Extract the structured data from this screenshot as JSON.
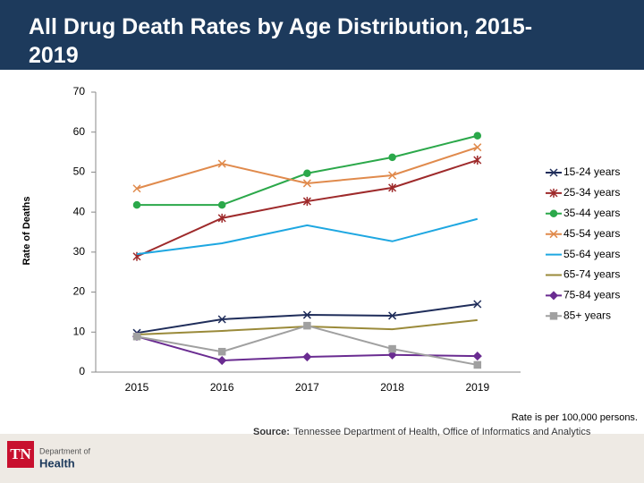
{
  "chart_data": {
    "type": "line",
    "title": "All Drug Death Rates by Age Distribution, 2015-2019",
    "y_label": "Rate of Deaths",
    "note": "Rate is per 100,000 persons.",
    "categories": [
      "2015",
      "2016",
      "2017",
      "2018",
      "2019"
    ],
    "ylim": [
      0,
      70
    ],
    "yticks": [
      0,
      10,
      20,
      30,
      40,
      50,
      60,
      70
    ],
    "legend": "right",
    "series": [
      {
        "name": "15-24 years",
        "color": "#1f2d5a",
        "marker": "x",
        "values": [
          9.8,
          13.2,
          14.3,
          14.1,
          17.0
        ]
      },
      {
        "name": "25-34 years",
        "color": "#9e2a2b",
        "marker": "star",
        "values": [
          28.9,
          38.5,
          42.7,
          46.1,
          53.0
        ]
      },
      {
        "name": "35-44 years",
        "color": "#2ba84a",
        "marker": "circle",
        "values": [
          41.8,
          41.8,
          49.7,
          53.7,
          59.1
        ]
      },
      {
        "name": "45-54 years",
        "color": "#e08a4c",
        "marker": "x",
        "values": [
          45.9,
          52.1,
          47.2,
          49.2,
          56.2
        ]
      },
      {
        "name": "55-64 years",
        "color": "#1ea7e1",
        "marker": "none",
        "values": [
          29.5,
          32.2,
          36.7,
          32.7,
          38.3
        ]
      },
      {
        "name": "65-74 years",
        "color": "#9a8a3a",
        "marker": "none",
        "values": [
          9.4,
          10.3,
          11.4,
          10.7,
          13.0
        ]
      },
      {
        "name": "75-84 years",
        "color": "#6a2c91",
        "marker": "diamond",
        "values": [
          8.9,
          2.9,
          3.8,
          4.3,
          4.0
        ]
      },
      {
        "name": "85+ years",
        "color": "#a0a0a0",
        "marker": "square",
        "values": [
          8.9,
          5.1,
          11.6,
          5.8,
          1.8
        ]
      }
    ]
  },
  "footer": {
    "source_label": "Source:",
    "source_text": "Tennessee Department of Health, Office of Informatics and Analytics",
    "logo": {
      "mark": "TN",
      "line1": "Department of",
      "line2": "Health"
    }
  }
}
